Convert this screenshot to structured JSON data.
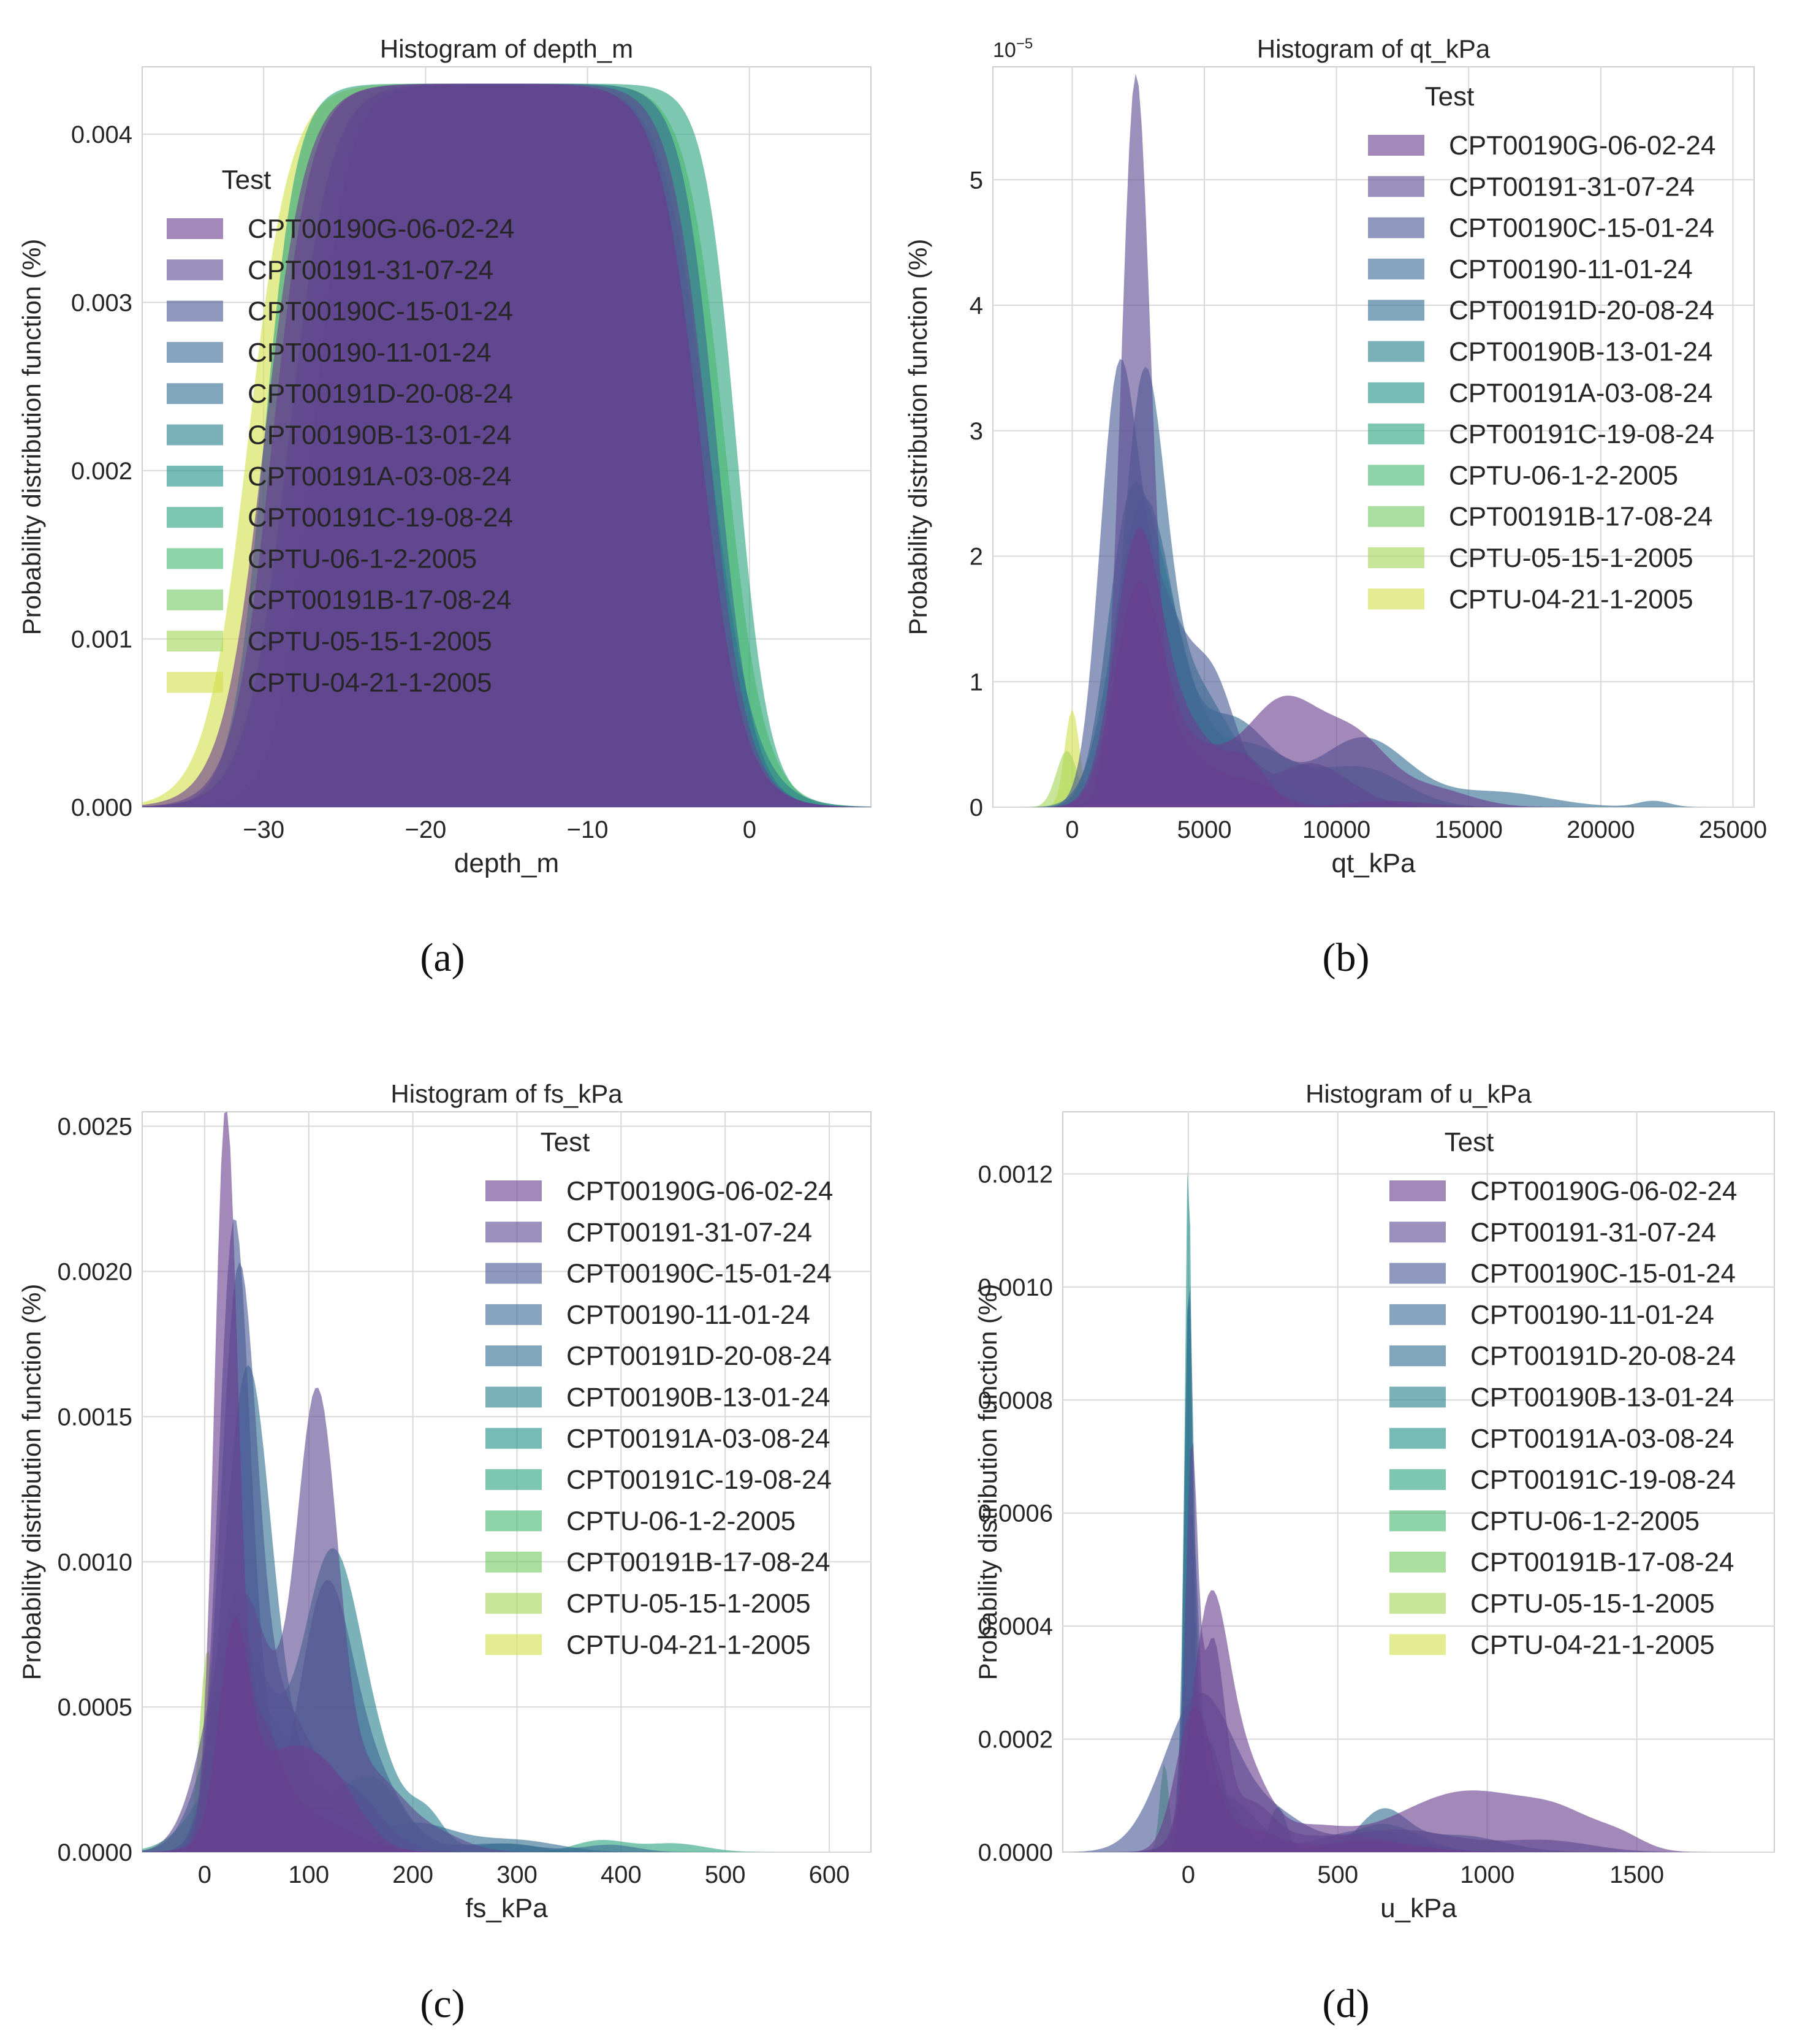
{
  "figure": {
    "legend_entries": [
      "CPT00190G-06-02-24",
      "CPT00191-31-07-24",
      "CPT00190C-15-01-24",
      "CPT00190-11-01-24",
      "CPT00191D-20-08-24",
      "CPT00190B-13-01-24",
      "CPT00191A-03-08-24",
      "CPT00191C-19-08-24",
      "CPTU-06-1-2-2005",
      "CPT00191B-17-08-24",
      "CPTU-05-15-1-2005",
      "CPTU-04-21-1-2005"
    ],
    "series_colors": [
      "#6b3f8f",
      "#5d4c93",
      "#4a5b95",
      "#3e6a94",
      "#336f92",
      "#2a818c",
      "#24918a",
      "#2da480",
      "#4ab872",
      "#76c865",
      "#a6d65a",
      "#d4e04d"
    ]
  },
  "chart_data": [
    {
      "type": "area",
      "panel_label": "(a)",
      "title": "Histogram of depth_m",
      "xlabel": "depth_m",
      "ylabel": "Probability distribution function (%)",
      "xlim": [
        -37.5,
        7.5
      ],
      "ylim": [
        0,
        0.0044
      ],
      "x_ticks": [
        -30,
        -20,
        -10,
        0
      ],
      "x_tick_labels": [
        "−30",
        "−20",
        "−10",
        "0"
      ],
      "y_ticks": [
        0,
        0.001,
        0.002,
        0.003,
        0.004
      ],
      "y_tick_labels": [
        "0.000",
        "0.001",
        "0.002",
        "0.003",
        "0.004"
      ],
      "y_multiplier": "",
      "legend_title": "Test",
      "legend_position": "upper-left",
      "peak_density": 0.0043,
      "depth_range_m": [
        -34,
        0
      ]
    },
    {
      "type": "area",
      "panel_label": "(b)",
      "title": "Histogram of qt_kPa",
      "xlabel": "qt_kPa",
      "ylabel": "Probability distribution function (%)",
      "xlim": [
        -3000,
        25800
      ],
      "ylim": [
        0,
        5.9
      ],
      "x_ticks": [
        0,
        5000,
        10000,
        15000,
        20000,
        25000
      ],
      "x_tick_labels": [
        "0",
        "5000",
        "10000",
        "15000",
        "20000",
        "25000"
      ],
      "y_ticks": [
        0,
        1,
        2,
        3,
        4,
        5
      ],
      "y_tick_labels": [
        "0",
        "1",
        "2",
        "3",
        "4",
        "5"
      ],
      "y_multiplier": "1e-5",
      "legend_title": "Test",
      "legend_position": "upper-right",
      "peak_density": 5.7,
      "peak_at": 2400
    },
    {
      "type": "area",
      "panel_label": "(c)",
      "title": "Histogram of fs_kPa",
      "xlabel": "fs_kPa",
      "ylabel": "Probability distribution function (%)",
      "xlim": [
        -60,
        640
      ],
      "ylim": [
        0,
        0.00255
      ],
      "x_ticks": [
        0,
        100,
        200,
        300,
        400,
        500,
        600
      ],
      "x_tick_labels": [
        "0",
        "100",
        "200",
        "300",
        "400",
        "500",
        "600"
      ],
      "y_ticks": [
        0,
        0.0005,
        0.001,
        0.0015,
        0.002,
        0.0025
      ],
      "y_tick_labels": [
        "0.0000",
        "0.0005",
        "0.0010",
        "0.0015",
        "0.0020",
        "0.0025"
      ],
      "y_multiplier": "",
      "legend_title": "Test",
      "legend_position": "upper-right",
      "peak_density": 0.00244,
      "peak_at": 18
    },
    {
      "type": "area",
      "panel_label": "(d)",
      "title": "Histogram of u_kPa",
      "xlabel": "u_kPa",
      "ylabel": "Probability distribution function (%)",
      "xlim": [
        -420,
        1960
      ],
      "ylim": [
        0,
        0.00131
      ],
      "x_ticks": [
        0,
        500,
        1000,
        1500
      ],
      "x_tick_labels": [
        "0",
        "500",
        "1000",
        "1500"
      ],
      "y_ticks": [
        0,
        0.0002,
        0.0004,
        0.0006,
        0.0008,
        0.001,
        0.0012
      ],
      "y_tick_labels": [
        "0.0000",
        "0.0002",
        "0.0004",
        "0.0006",
        "0.0008",
        "0.0010",
        "0.0012"
      ],
      "y_multiplier": "",
      "legend_title": "Test",
      "legend_position": "upper-right",
      "peak_density": 0.00124,
      "peak_at": 0
    }
  ]
}
